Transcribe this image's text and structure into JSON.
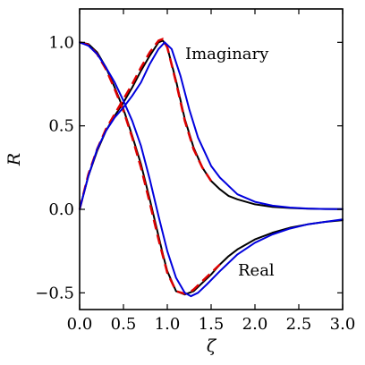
{
  "chart_data": {
    "type": "line",
    "title": "",
    "xlabel": "ζ",
    "ylabel": "R",
    "xlim": [
      0.0,
      3.0
    ],
    "ylim": [
      -0.6,
      1.2
    ],
    "xticks": [
      "0.0",
      "0.5",
      "1.0",
      "1.5",
      "2.0",
      "2.5",
      "3.0"
    ],
    "yticks": [
      "−0.5",
      "0.0",
      "0.5",
      "1.0"
    ],
    "grid": false,
    "annotations": [
      {
        "text": "Imaginary",
        "x": 1.22,
        "y": 0.9
      },
      {
        "text": "Real",
        "x": 1.8,
        "y": -0.4
      }
    ],
    "series": [
      {
        "color": "#000000",
        "style": "solid",
        "width": 2,
        "x": [
          0.0,
          0.1,
          0.2,
          0.3,
          0.4,
          0.5,
          0.6,
          0.7,
          0.8,
          0.9,
          0.95,
          1.0,
          1.1,
          1.2,
          1.3,
          1.4,
          1.5,
          1.6,
          1.7,
          1.8,
          2.0,
          2.2,
          2.4,
          2.6,
          2.8,
          3.0
        ],
        "y": [
          1.0,
          0.99,
          0.94,
          0.85,
          0.73,
          0.6,
          0.44,
          0.27,
          0.06,
          -0.16,
          -0.27,
          -0.37,
          -0.49,
          -0.51,
          -0.49,
          -0.44,
          -0.39,
          -0.33,
          -0.28,
          -0.24,
          -0.18,
          -0.14,
          -0.11,
          -0.09,
          -0.075,
          -0.065
        ]
      },
      {
        "color": "#000000",
        "style": "solid",
        "width": 2,
        "x": [
          0.0,
          0.1,
          0.2,
          0.3,
          0.4,
          0.5,
          0.6,
          0.7,
          0.8,
          0.9,
          0.95,
          1.0,
          1.1,
          1.2,
          1.3,
          1.4,
          1.5,
          1.6,
          1.7,
          1.8,
          2.0,
          2.2,
          2.4,
          2.6,
          2.8,
          3.0
        ],
        "y": [
          0.0,
          0.2,
          0.35,
          0.47,
          0.56,
          0.64,
          0.73,
          0.83,
          0.92,
          1.0,
          1.01,
          0.97,
          0.77,
          0.54,
          0.37,
          0.25,
          0.17,
          0.12,
          0.08,
          0.06,
          0.03,
          0.015,
          0.008,
          0.004,
          0.002,
          0.001
        ]
      },
      {
        "color": "#dd0000",
        "style": "dashed",
        "width": 2.5,
        "x": [
          0.0,
          0.1,
          0.2,
          0.3,
          0.4,
          0.5,
          0.6,
          0.7,
          0.8,
          0.9,
          0.95,
          1.0,
          1.1,
          1.2,
          1.25,
          1.3,
          1.4,
          1.5,
          1.6
        ],
        "y": [
          1.0,
          0.985,
          0.93,
          0.84,
          0.72,
          0.59,
          0.43,
          0.25,
          0.04,
          -0.18,
          -0.28,
          -0.38,
          -0.49,
          -0.505,
          -0.5,
          -0.48,
          -0.43,
          -0.38,
          -0.33
        ]
      },
      {
        "color": "#dd0000",
        "style": "dashed",
        "width": 2.5,
        "x": [
          0.0,
          0.1,
          0.2,
          0.3,
          0.4,
          0.5,
          0.6,
          0.7,
          0.8,
          0.9,
          0.95,
          1.0,
          1.1,
          1.2,
          1.3,
          1.4,
          1.5
        ],
        "y": [
          0.0,
          0.21,
          0.36,
          0.48,
          0.57,
          0.66,
          0.75,
          0.85,
          0.94,
          1.01,
          1.02,
          0.97,
          0.76,
          0.53,
          0.36,
          0.25,
          0.17
        ]
      },
      {
        "color": "#0000dd",
        "style": "solid",
        "width": 2,
        "x": [
          0.0,
          0.1,
          0.2,
          0.3,
          0.4,
          0.5,
          0.6,
          0.7,
          0.8,
          0.9,
          1.0,
          1.1,
          1.2,
          1.27,
          1.35,
          1.45,
          1.6,
          1.8,
          2.0,
          2.2,
          2.4,
          2.6,
          2.8,
          3.0
        ],
        "y": [
          1.0,
          0.98,
          0.93,
          0.85,
          0.76,
          0.65,
          0.53,
          0.38,
          0.18,
          -0.04,
          -0.25,
          -0.41,
          -0.5,
          -0.52,
          -0.5,
          -0.45,
          -0.37,
          -0.27,
          -0.2,
          -0.15,
          -0.115,
          -0.09,
          -0.075,
          -0.06
        ]
      },
      {
        "color": "#0000dd",
        "style": "solid",
        "width": 2,
        "x": [
          0.0,
          0.1,
          0.2,
          0.3,
          0.4,
          0.5,
          0.6,
          0.7,
          0.8,
          0.9,
          0.97,
          1.05,
          1.15,
          1.25,
          1.35,
          1.5,
          1.6,
          1.8,
          2.0,
          2.2,
          2.4,
          2.6,
          2.8,
          3.0
        ],
        "y": [
          0.0,
          0.2,
          0.36,
          0.47,
          0.55,
          0.61,
          0.68,
          0.76,
          0.87,
          0.96,
          1.0,
          0.96,
          0.8,
          0.6,
          0.43,
          0.26,
          0.19,
          0.09,
          0.045,
          0.022,
          0.011,
          0.005,
          0.002,
          0.001
        ]
      }
    ]
  }
}
